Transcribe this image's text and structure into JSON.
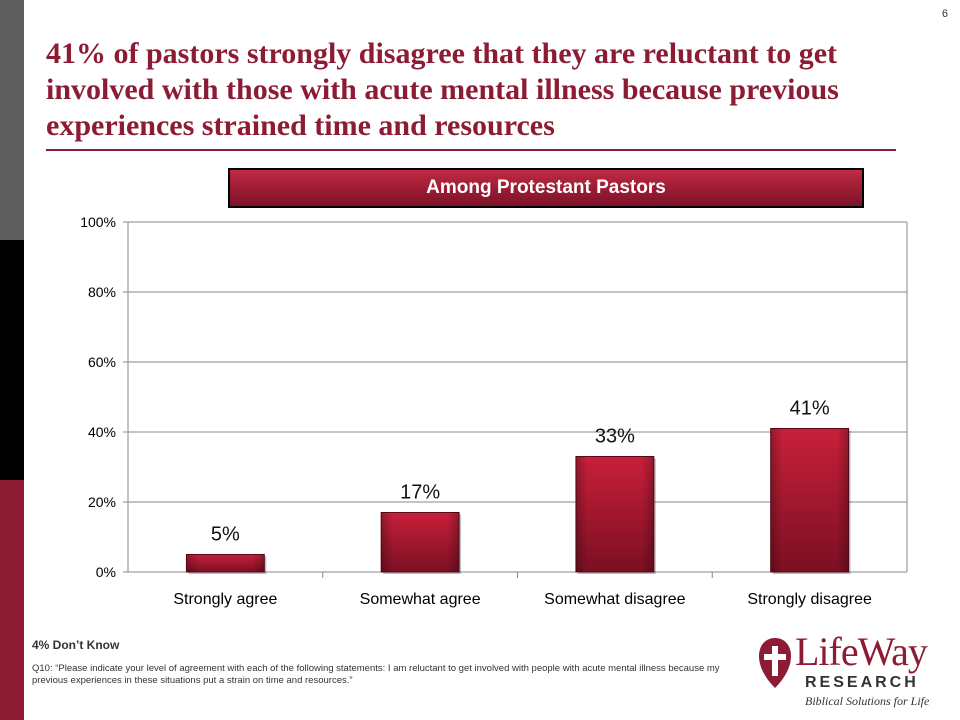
{
  "slide": {
    "page_number": "6",
    "headline": "41% of pastors strongly disagree that they are reluctant to get involved with those with acute mental illness because previous experiences strained time and resources",
    "subgroup_label": "Among Protestant Pastors",
    "footnote_dont_know": "4% Don’t Know",
    "footnote_question": "Q10: “Please indicate your level of agreement with each of the following statements: I am reluctant to get involved with people with acute mental illness because my previous experiences in these situations put a strain on time and resources.”"
  },
  "logo": {
    "wordmark": "LifeWay",
    "research": "RESEARCH",
    "tagline": "Biblical Solutions for Life"
  },
  "colors": {
    "accent": "#8c1c34",
    "bar_top": "#c8203a",
    "bar_bottom": "#7a0f22",
    "grid": "#8a8a8a"
  },
  "chart_data": {
    "type": "bar",
    "title": "",
    "xlabel": "",
    "ylabel": "",
    "categories": [
      "Strongly agree",
      "Somewhat agree",
      "Somewhat disagree",
      "Strongly disagree"
    ],
    "values": [
      5,
      17,
      33,
      41
    ],
    "data_labels": [
      "5%",
      "17%",
      "33%",
      "41%"
    ],
    "ylim": [
      0,
      100
    ],
    "yticks": [
      0,
      20,
      40,
      60,
      80,
      100
    ],
    "ytick_labels": [
      "0%",
      "20%",
      "40%",
      "60%",
      "80%",
      "100%"
    ],
    "grid": true,
    "legend": "none"
  }
}
